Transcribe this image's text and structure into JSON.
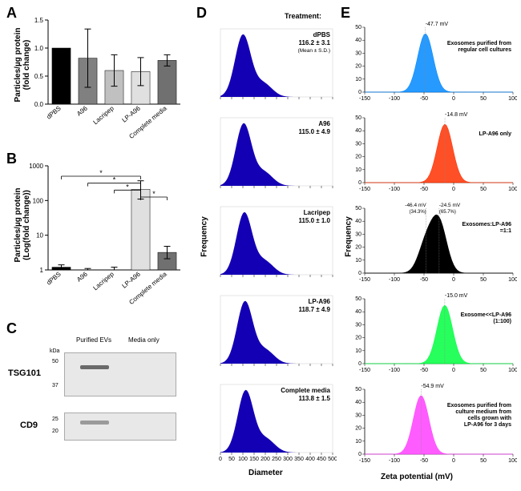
{
  "panelA": {
    "label": "A",
    "ylabel": "Particles/µg protein\n(fold change)",
    "ylim": [
      0,
      1.5
    ],
    "ytick_step": 0.5,
    "categories": [
      "dPBS",
      "A96",
      "Lacripep",
      "LP-A96",
      "Complete media"
    ],
    "values": [
      1.0,
      0.82,
      0.6,
      0.58,
      0.78
    ],
    "errors": [
      0.0,
      0.52,
      0.28,
      0.25,
      0.1
    ],
    "bar_colors": [
      "#000000",
      "#808080",
      "#c0c0c0",
      "#e0e0e0",
      "#707070"
    ]
  },
  "panelB": {
    "label": "B",
    "ylabel": "Particles/µg protein\n(Log(fold change))",
    "ylim": [
      0,
      3
    ],
    "yticks": [
      1,
      10,
      100,
      1000
    ],
    "ytick_labels": [
      "1",
      "10",
      "100",
      "1000"
    ],
    "categories": [
      "dPBS",
      "A96",
      "Lacripep",
      "LP-A96",
      "Complete media"
    ],
    "values": [
      1.2,
      0.8,
      1.0,
      210,
      3.2
    ],
    "errors_low": [
      0.2,
      0.2,
      0.2,
      100,
      1.1
    ],
    "errors_high": [
      0.2,
      0.3,
      0.2,
      160,
      1.6
    ],
    "bar_colors": [
      "#000000",
      "#808080",
      "#c0c0c0",
      "#e0e0e0",
      "#707070"
    ],
    "sig_bars": [
      {
        "from": 0,
        "to": 3,
        "y": 2.7,
        "label": "*"
      },
      {
        "from": 1,
        "to": 3,
        "y": 2.5,
        "label": "*"
      },
      {
        "from": 2,
        "to": 3,
        "y": 2.3,
        "label": "*"
      },
      {
        "from": 3,
        "to": 4,
        "y": 2.1,
        "label": "*"
      }
    ]
  },
  "panelC": {
    "label": "C",
    "col_labels": [
      "Purified EVs",
      "Media only"
    ],
    "markers_kda": [
      "kDa",
      "50",
      "37",
      "25",
      "20"
    ],
    "rows": [
      "TSG101",
      "CD9"
    ]
  },
  "panelD": {
    "label": "D",
    "header": "Treatment:",
    "ylabel": "Frequency",
    "xlabel": "Diameter",
    "xlim": [
      0,
      500
    ],
    "subplots": [
      {
        "title": "dPBS",
        "value": "116.2 ± 3.1",
        "sub": "(Mean ± S.D.)"
      },
      {
        "title": "A96",
        "value": "115.0 ± 4.9",
        "sub": ""
      },
      {
        "title": "Lacripep",
        "value": "115.0 ± 1.0",
        "sub": ""
      },
      {
        "title": "LP-A96",
        "value": "118.7 ± 4.9",
        "sub": ""
      },
      {
        "title": "Complete media",
        "value": "113.8 ± 1.5",
        "sub": ""
      }
    ],
    "hist_color": "#1400b4"
  },
  "panelE": {
    "label": "E",
    "ylabel": "Frequency",
    "xlabel": "Zeta potential (mV)",
    "xlim": [
      -150,
      100
    ],
    "xtick_step": 50,
    "subplots": [
      {
        "color": "#0088ff",
        "peak_label": "-47.7 mV",
        "side_label": "Exosomes purified from\nregular cell cultures",
        "peaks": [
          {
            "x": -47.7,
            "pct": null
          }
        ]
      },
      {
        "color": "#ff3000",
        "peak_label": "-14.8 mV",
        "side_label": "LP-A96 only",
        "peaks": [
          {
            "x": -14.8,
            "pct": null
          }
        ]
      },
      {
        "color": "#000000",
        "peak_label": "-46.4 mV / -24.5 mV",
        "side_label": "Exosomes:LP-A96\n=1:1",
        "peaks": [
          {
            "x": -46.4,
            "pct": "(34.3%)"
          },
          {
            "x": -24.5,
            "pct": "(65.7%)"
          }
        ]
      },
      {
        "color": "#00ff40",
        "peak_label": "-15.0 mV",
        "side_label": "Exosome<<LP-A96\n(1:100)",
        "peaks": [
          {
            "x": -15.0,
            "pct": null
          }
        ]
      },
      {
        "color": "#ff40ff",
        "peak_label": "-54.9 mV",
        "side_label": "Exosomes purified from\nculture medium from\ncells grown with\nLP-A96 for 3 days",
        "peaks": [
          {
            "x": -54.9,
            "pct": null
          }
        ]
      }
    ]
  }
}
